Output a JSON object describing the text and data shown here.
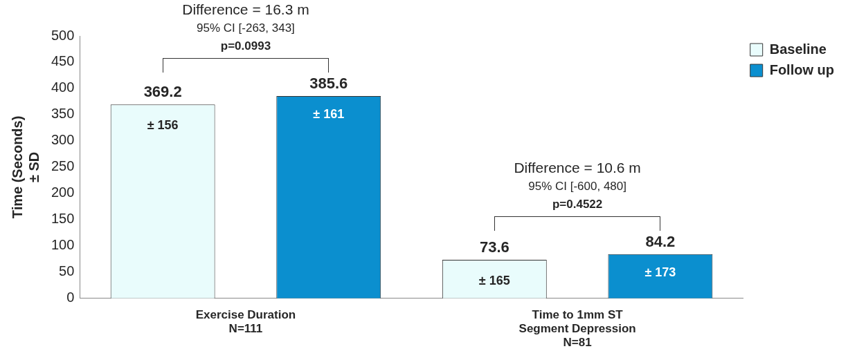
{
  "chart_data": {
    "type": "bar",
    "ylabel": "Time (Seconds)\n± SD",
    "categories": [
      "Exercise Duration\nN=111",
      "Time to 1mm ST\nSegment Depression\nN=81"
    ],
    "series": [
      {
        "name": "Baseline",
        "color": "#e9fcfc",
        "values": [
          369.2,
          73.6
        ]
      },
      {
        "name": "Follow up",
        "color": "#0b8fcf",
        "values": [
          385.6,
          84.2
        ]
      }
    ],
    "ylim": [
      0,
      500
    ],
    "yticks": [
      0,
      50,
      100,
      150,
      200,
      250,
      300,
      350,
      400,
      450,
      500
    ],
    "grid": false,
    "legend": "right",
    "data_labels": true,
    "annotations": [
      "Difference = 16.3 m",
      "95% CI [-263, 343]",
      "p=0.0993",
      "Difference = 10.6 m",
      "95% CI [-600, 480]",
      "p=0.4522",
      "± 156",
      "± 165",
      "± 161",
      "± 173"
    ]
  }
}
